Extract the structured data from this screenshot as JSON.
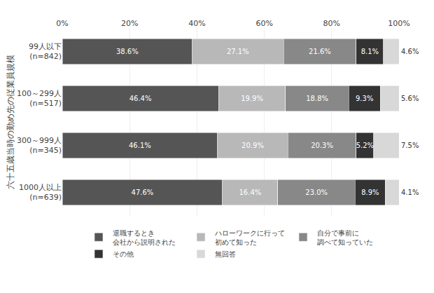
{
  "chart_data": {
    "type": "bar",
    "orientation": "horizontal",
    "stacked": true,
    "categories": [
      "99人以下\n(n=842)",
      "100～299人\n(n=517)",
      "300～999人\n(n=345)",
      "1000人以上\n(n=639)"
    ],
    "series": [
      {
        "name": "退職するとき\n会社から説明された",
        "color": "#555555",
        "values": [
          38.6,
          46.4,
          46.1,
          47.6
        ],
        "value_labels": [
          "38.6%",
          "46.4%",
          "46.1%",
          "47.6%"
        ]
      },
      {
        "name": "ハローワークに行って\n初めて知った",
        "color": "#b8b8b8",
        "values": [
          27.1,
          19.9,
          20.9,
          16.4
        ],
        "value_labels": [
          "27.1%",
          "19.9%",
          "20.9%",
          "16.4%"
        ]
      },
      {
        "name": "自分で事前に\n調べて知っていた",
        "color": "#888888",
        "values": [
          21.6,
          18.8,
          20.3,
          23.0
        ],
        "value_labels": [
          "21.6%",
          "18.8%",
          "20.3%",
          "23.0%"
        ]
      },
      {
        "name": "その他",
        "color": "#333333",
        "values": [
          8.1,
          9.3,
          5.2,
          8.9
        ],
        "value_labels": [
          "8.1%",
          "9.3%",
          "5.2%",
          "8.9%"
        ]
      },
      {
        "name": "無回答",
        "color": "#d8d8d8",
        "values": [
          4.6,
          5.6,
          7.5,
          4.1
        ],
        "value_labels": [
          "4.6%",
          "5.6%",
          "7.5%",
          "4.1%"
        ]
      }
    ],
    "xlim": [
      0,
      100
    ],
    "xticks": [
      {
        "value": 0,
        "label": "0%"
      },
      {
        "value": 20,
        "label": "20%"
      },
      {
        "value": 40,
        "label": "40%"
      },
      {
        "value": 60,
        "label": "60%"
      },
      {
        "value": 80,
        "label": "80%"
      },
      {
        "value": 100,
        "label": "100%"
      }
    ],
    "ylabel": "六十五歳当時の勤め先の従業員規模",
    "grid": true,
    "data_labels": true,
    "legend": "bottom"
  }
}
